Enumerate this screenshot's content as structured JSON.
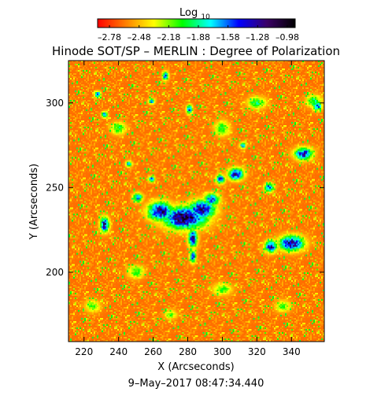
{
  "chart_data": {
    "type": "heatmap",
    "title": "Hinode SOT/SP – MERLIN : Degree of Polarization",
    "xlabel": "X (Arcseconds)",
    "ylabel": "Y (Arcseconds)",
    "footer": "9–May–2017 08:47:34.440",
    "colorbar": {
      "label_main": "Log",
      "label_sub": "10",
      "ticks": [
        "–2.78",
        "–2.48",
        "–2.18",
        "–1.88",
        "–1.58",
        "–1.28",
        "–0.98"
      ],
      "range": [
        -2.9,
        -0.9
      ],
      "colors": [
        "#ff0000",
        "#ff7f00",
        "#ffff00",
        "#00ff00",
        "#00ffff",
        "#0000ff",
        "#3a0066",
        "#000000"
      ]
    },
    "xlim": [
      211,
      359
    ],
    "ylim": [
      159,
      325
    ],
    "x_ticks": [
      220,
      240,
      260,
      280,
      300,
      320,
      340
    ],
    "y_ticks": [
      200,
      250,
      300
    ],
    "x_tick_labels": [
      "220",
      "240",
      "260",
      "280",
      "300",
      "320",
      "340"
    ],
    "y_tick_labels": [
      "200",
      "250",
      "300"
    ],
    "background_level": -2.65,
    "features": [
      {
        "x": 278,
        "y": 232,
        "rx": 14,
        "ry": 7,
        "level": -1.05
      },
      {
        "x": 264,
        "y": 236,
        "rx": 8,
        "ry": 6,
        "level": -1.2
      },
      {
        "x": 288,
        "y": 237,
        "rx": 9,
        "ry": 6,
        "level": -1.25
      },
      {
        "x": 294,
        "y": 243,
        "rx": 5,
        "ry": 4,
        "level": -1.5
      },
      {
        "x": 283,
        "y": 220,
        "rx": 3,
        "ry": 6,
        "level": -1.3
      },
      {
        "x": 283,
        "y": 209,
        "rx": 2,
        "ry": 4,
        "level": -1.4
      },
      {
        "x": 308,
        "y": 258,
        "rx": 5,
        "ry": 4,
        "level": -1.3
      },
      {
        "x": 299,
        "y": 255,
        "rx": 3,
        "ry": 3,
        "level": -1.5
      },
      {
        "x": 327,
        "y": 250,
        "rx": 3,
        "ry": 3,
        "level": -1.45
      },
      {
        "x": 340,
        "y": 217,
        "rx": 8,
        "ry": 5,
        "level": -1.2
      },
      {
        "x": 328,
        "y": 215,
        "rx": 4,
        "ry": 4,
        "level": -1.35
      },
      {
        "x": 347,
        "y": 270,
        "rx": 6,
        "ry": 4,
        "level": -1.35
      },
      {
        "x": 232,
        "y": 228,
        "rx": 3,
        "ry": 5,
        "level": -1.3
      },
      {
        "x": 251,
        "y": 244,
        "rx": 3,
        "ry": 3,
        "level": -1.5
      },
      {
        "x": 228,
        "y": 305,
        "rx": 2,
        "ry": 2,
        "level": -1.5
      },
      {
        "x": 232,
        "y": 293,
        "rx": 2,
        "ry": 2,
        "level": -1.5
      },
      {
        "x": 267,
        "y": 316,
        "rx": 2,
        "ry": 3,
        "level": -1.5
      },
      {
        "x": 281,
        "y": 296,
        "rx": 2,
        "ry": 3,
        "level": -1.5
      },
      {
        "x": 259,
        "y": 301,
        "rx": 2,
        "ry": 2,
        "level": -1.6
      },
      {
        "x": 259,
        "y": 255,
        "rx": 2,
        "ry": 2,
        "level": -1.55
      },
      {
        "x": 312,
        "y": 275,
        "rx": 2,
        "ry": 2,
        "level": -1.6
      },
      {
        "x": 355,
        "y": 298,
        "rx": 3,
        "ry": 3,
        "level": -1.55
      },
      {
        "x": 246,
        "y": 264,
        "rx": 2,
        "ry": 2,
        "level": -1.6
      },
      {
        "x": 353,
        "y": 301,
        "rx": 5,
        "ry": 4,
        "level": -1.9
      },
      {
        "x": 320,
        "y": 300,
        "rx": 6,
        "ry": 4,
        "level": -1.95
      },
      {
        "x": 300,
        "y": 285,
        "rx": 5,
        "ry": 5,
        "level": -2.0
      },
      {
        "x": 240,
        "y": 285,
        "rx": 5,
        "ry": 4,
        "level": -2.0
      },
      {
        "x": 250,
        "y": 200,
        "rx": 5,
        "ry": 4,
        "level": -2.0
      },
      {
        "x": 300,
        "y": 190,
        "rx": 6,
        "ry": 4,
        "level": -2.05
      },
      {
        "x": 335,
        "y": 180,
        "rx": 5,
        "ry": 4,
        "level": -2.1
      },
      {
        "x": 225,
        "y": 180,
        "rx": 5,
        "ry": 4,
        "level": -2.1
      },
      {
        "x": 270,
        "y": 175,
        "rx": 4,
        "ry": 3,
        "level": -2.1
      }
    ]
  }
}
